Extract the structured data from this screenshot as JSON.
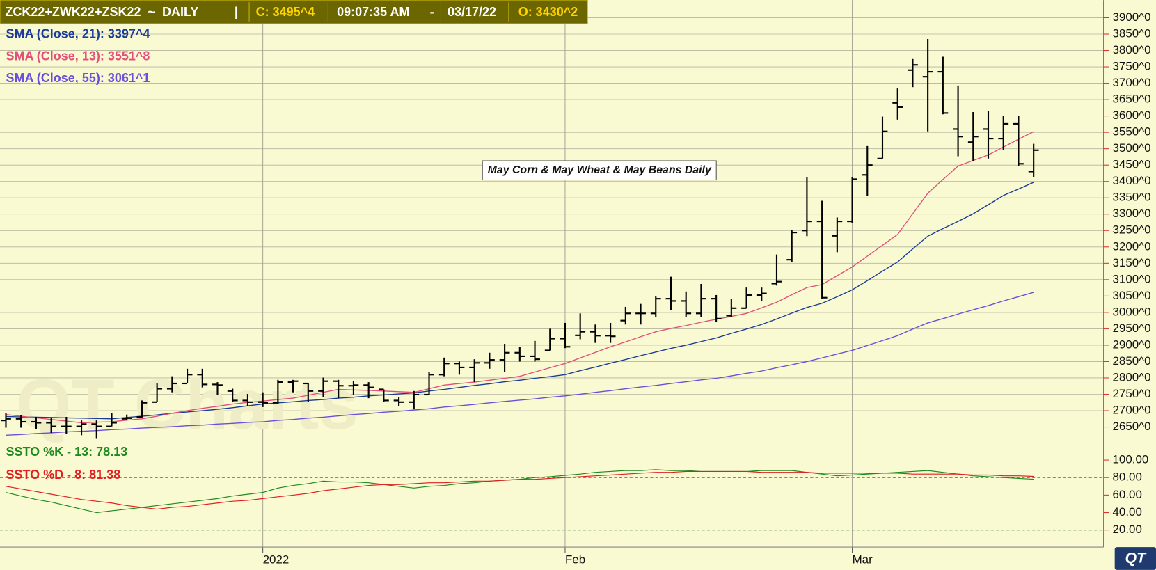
{
  "header": {
    "parts": [
      "ZCK22+ZWK22+ZSK22  ~  DAILY",
      "|",
      "C: 3495^4",
      "09:07:35 AM",
      "-",
      "03/17/22",
      "O: 3430^2"
    ]
  },
  "logo": "QT",
  "chart_data": {
    "type": "ohlc",
    "annotation": "May Corn & May Wheat & May Beans Daily",
    "watermark": "QT Charts",
    "bar_color": "#000000",
    "grid": true,
    "categories": [
      null,
      null,
      null,
      null,
      null,
      null,
      null,
      null,
      null,
      null,
      null,
      null,
      null,
      null,
      null,
      null,
      null,
      "2022",
      null,
      null,
      null,
      null,
      null,
      null,
      null,
      null,
      null,
      null,
      null,
      null,
      null,
      null,
      null,
      null,
      null,
      null,
      null,
      "Feb",
      null,
      null,
      null,
      null,
      null,
      null,
      null,
      null,
      null,
      null,
      null,
      null,
      null,
      null,
      null,
      null,
      null,
      null,
      "Mar",
      null,
      null,
      null,
      null,
      null,
      null,
      null,
      null,
      null,
      null,
      null,
      null
    ],
    "open": [
      2670,
      2675,
      2666,
      2663,
      2652,
      2652,
      2659,
      2652,
      2675,
      2681,
      2726,
      2767,
      2783,
      2810,
      2780,
      2760,
      2731,
      2726,
      2724,
      2787,
      2783,
      2760,
      2790,
      2776,
      2778,
      2765,
      2731,
      2726,
      2749,
      2810,
      2844,
      2832,
      2846,
      2855,
      2877,
      2866,
      2884,
      2920,
      2930,
      2941,
      2929,
      2975,
      2997,
      2997,
      3042,
      3035,
      2997,
      3042,
      2990,
      3013,
      3053,
      3088,
      3161,
      3250,
      3278,
      3234,
      3278,
      3420,
      3470,
      3640,
      3740,
      3720,
      3735,
      3560,
      3520,
      3560,
      3531,
      3576,
      3430.25
    ],
    "high": [
      2693,
      2686,
      2681,
      2677,
      2681,
      2670,
      2670,
      2693,
      2688,
      2731,
      2783,
      2805,
      2828,
      2828,
      2787,
      2767,
      2751,
      2756,
      2794,
      2794,
      2783,
      2801,
      2794,
      2790,
      2787,
      2765,
      2742,
      2760,
      2817,
      2862,
      2850,
      2857,
      2877,
      2904,
      2895,
      2913,
      2950,
      2968,
      2997,
      2963,
      2968,
      3017,
      3026,
      3049,
      3109,
      3064,
      3087,
      3053,
      3042,
      3076,
      3076,
      3177,
      3251,
      3413,
      3341,
      3290,
      3413,
      3508,
      3598,
      3684,
      3774,
      3835,
      3781,
      3693,
      3612,
      3616,
      3600,
      3600,
      3515
    ],
    "low": [
      2648,
      2648,
      2643,
      2632,
      2630,
      2625,
      2614,
      2652,
      2670,
      2679,
      2726,
      2756,
      2783,
      2771,
      2749,
      2726,
      2715,
      2711,
      2720,
      2756,
      2726,
      2742,
      2738,
      2749,
      2738,
      2726,
      2715,
      2704,
      2749,
      2805,
      2810,
      2787,
      2828,
      2817,
      2850,
      2850,
      2884,
      2891,
      2918,
      2907,
      2907,
      2963,
      2963,
      2986,
      3008,
      2986,
      2986,
      2972,
      2986,
      3013,
      3035,
      3082,
      3154,
      3233,
      3042,
      3184,
      3274,
      3357,
      3470,
      3589,
      3688,
      3553,
      3605,
      3477,
      3463,
      3470,
      3497,
      3447,
      3413
    ],
    "close": [
      2675,
      2666,
      2663,
      2652,
      2652,
      2659,
      2652,
      2663,
      2677,
      2724,
      2767,
      2783,
      2810,
      2780,
      2778,
      2731,
      2726,
      2724,
      2787,
      2790,
      2760,
      2790,
      2776,
      2778,
      2771,
      2731,
      2726,
      2749,
      2810,
      2844,
      2832,
      2846,
      2855,
      2877,
      2866,
      2857,
      2920,
      2895,
      2941,
      2929,
      2927,
      2997,
      2997,
      3042,
      3035,
      2997,
      3042,
      2981,
      3013,
      3053,
      3058,
      3094,
      3244,
      3278,
      3045,
      3278,
      3407,
      3450,
      3553,
      3627,
      3756,
      3735,
      3609,
      3537,
      3537,
      3531,
      3576,
      3454,
      3495.5
    ],
    "series": [
      {
        "name": "SMA (Close, 21): 3397^4",
        "color": "#1c3c98",
        "values": [
          2682,
          2681,
          2680,
          2679,
          2678,
          2677,
          2676,
          2675,
          2679,
          2683,
          2687,
          2692,
          2696,
          2700,
          2704,
          2709,
          2715,
          2720,
          2724,
          2727,
          2731,
          2734,
          2738,
          2741,
          2745,
          2748,
          2751,
          2754,
          2760,
          2765,
          2771,
          2777,
          2782,
          2788,
          2793,
          2799,
          2804,
          2810,
          2822,
          2833,
          2845,
          2856,
          2868,
          2879,
          2890,
          2900,
          2911,
          2922,
          2936,
          2949,
          2963,
          2980,
          2998,
          3015,
          3028,
          3048,
          3069,
          3097,
          3126,
          3154,
          3194,
          3233,
          3256,
          3278,
          3301,
          3329,
          3357,
          3377,
          3397.5
        ]
      },
      {
        "name": "SMA (Close, 13): 3551^8",
        "color": "#e0507a",
        "values": [
          2688,
          2683,
          2678,
          2673,
          2668,
          2663,
          2665,
          2666,
          2671,
          2675,
          2683,
          2692,
          2700,
          2707,
          2713,
          2720,
          2725,
          2729,
          2734,
          2738,
          2747,
          2756,
          2765,
          2763,
          2762,
          2760,
          2758,
          2756,
          2767,
          2778,
          2783,
          2787,
          2793,
          2799,
          2805,
          2818,
          2831,
          2844,
          2861,
          2878,
          2895,
          2910,
          2926,
          2941,
          2951,
          2960,
          2970,
          2979,
          2988,
          2997,
          3014,
          3031,
          3054,
          3076,
          3085,
          3112,
          3139,
          3172,
          3205,
          3238,
          3301,
          3364,
          3406,
          3447,
          3464,
          3481,
          3505,
          3529,
          3551.75
        ]
      },
      {
        "name": "SMA (Close, 55): 3061^1",
        "color": "#6a50d8",
        "values": [
          2625,
          2627,
          2630,
          2632,
          2635,
          2637,
          2639,
          2642,
          2644,
          2647,
          2649,
          2651,
          2654,
          2656,
          2659,
          2661,
          2664,
          2666,
          2670,
          2673,
          2677,
          2680,
          2684,
          2688,
          2691,
          2695,
          2698,
          2702,
          2706,
          2711,
          2715,
          2719,
          2724,
          2728,
          2732,
          2736,
          2741,
          2745,
          2750,
          2756,
          2761,
          2767,
          2772,
          2777,
          2783,
          2788,
          2794,
          2799,
          2806,
          2814,
          2821,
          2831,
          2840,
          2850,
          2861,
          2873,
          2884,
          2899,
          2914,
          2929,
          2949,
          2968,
          2981,
          2995,
          3008,
          3021,
          3035,
          3048,
          3061.125
        ]
      }
    ],
    "ylim": [
      2603,
      3954
    ],
    "yticks": [
      {
        "value": 2650,
        "label": "2650^0"
      },
      {
        "value": 2700,
        "label": "2700^0"
      },
      {
        "value": 2750,
        "label": "2750^0"
      },
      {
        "value": 2800,
        "label": "2800^0"
      },
      {
        "value": 2850,
        "label": "2850^0"
      },
      {
        "value": 2900,
        "label": "2900^0"
      },
      {
        "value": 2950,
        "label": "2950^0"
      },
      {
        "value": 3000,
        "label": "3000^0"
      },
      {
        "value": 3050,
        "label": "3050^0"
      },
      {
        "value": 3100,
        "label": "3100^0"
      },
      {
        "value": 3150,
        "label": "3150^0"
      },
      {
        "value": 3200,
        "label": "3200^0"
      },
      {
        "value": 3250,
        "label": "3250^0"
      },
      {
        "value": 3300,
        "label": "3300^0"
      },
      {
        "value": 3350,
        "label": "3350^0"
      },
      {
        "value": 3400,
        "label": "3400^0"
      },
      {
        "value": 3450,
        "label": "3450^0"
      },
      {
        "value": 3500,
        "label": "3500^0"
      },
      {
        "value": 3550,
        "label": "3550^0"
      },
      {
        "value": 3600,
        "label": "3600^0"
      },
      {
        "value": 3650,
        "label": "3650^0"
      },
      {
        "value": 3700,
        "label": "3700^0"
      },
      {
        "value": 3750,
        "label": "3750^0"
      },
      {
        "value": 3800,
        "label": "3800^0"
      },
      {
        "value": 3850,
        "label": "3850^0"
      },
      {
        "value": 3900,
        "label": "3900^0"
      }
    ],
    "lower": {
      "type": "line",
      "series": [
        {
          "name": "SSTO %K - 13: 78.13",
          "color": "#1e8a1e",
          "values": [
            63,
            59,
            55,
            52,
            48,
            44,
            40,
            42,
            44,
            46,
            48,
            50,
            52,
            54,
            56,
            59,
            61,
            63,
            68,
            71,
            73,
            76,
            75,
            75,
            74,
            72,
            70,
            68,
            70,
            71,
            73,
            74,
            76,
            77,
            78,
            80,
            81,
            82.5,
            84,
            86,
            87,
            88,
            88,
            89,
            88,
            88,
            87,
            87,
            87,
            87,
            88,
            88,
            88,
            86,
            84,
            82,
            83,
            84,
            85,
            86,
            87,
            88,
            86,
            84,
            82,
            81,
            80,
            79,
            78.13
          ]
        },
        {
          "name": "SSTO %D - 8: 81.38",
          "color": "#e02020",
          "values": [
            70,
            67,
            64,
            61,
            58,
            55,
            53,
            51,
            48,
            46,
            44,
            46,
            47,
            49,
            51,
            53,
            54,
            56,
            58,
            60,
            62,
            65,
            67,
            69,
            71,
            72,
            72,
            73,
            74,
            74,
            75,
            76,
            76,
            77,
            78,
            78,
            79,
            80,
            81,
            82,
            83,
            84,
            85,
            86,
            86,
            87,
            87,
            87,
            87,
            87,
            86,
            86,
            86,
            86,
            85,
            85,
            85,
            85,
            85,
            85,
            84,
            84,
            84,
            84,
            83,
            83,
            82,
            82,
            81.38
          ]
        }
      ],
      "levels": [
        80,
        20
      ],
      "level_colors": [
        "#e03030",
        "#3a6a3a"
      ],
      "ylim": [
        0.6,
        118.5
      ],
      "yticks": [
        {
          "value": 20,
          "label": "20.00"
        },
        {
          "value": 40,
          "label": "40.00"
        },
        {
          "value": 60,
          "label": "60.00"
        },
        {
          "value": 80,
          "label": "80.00"
        },
        {
          "value": 100,
          "label": "100.00"
        }
      ]
    }
  }
}
